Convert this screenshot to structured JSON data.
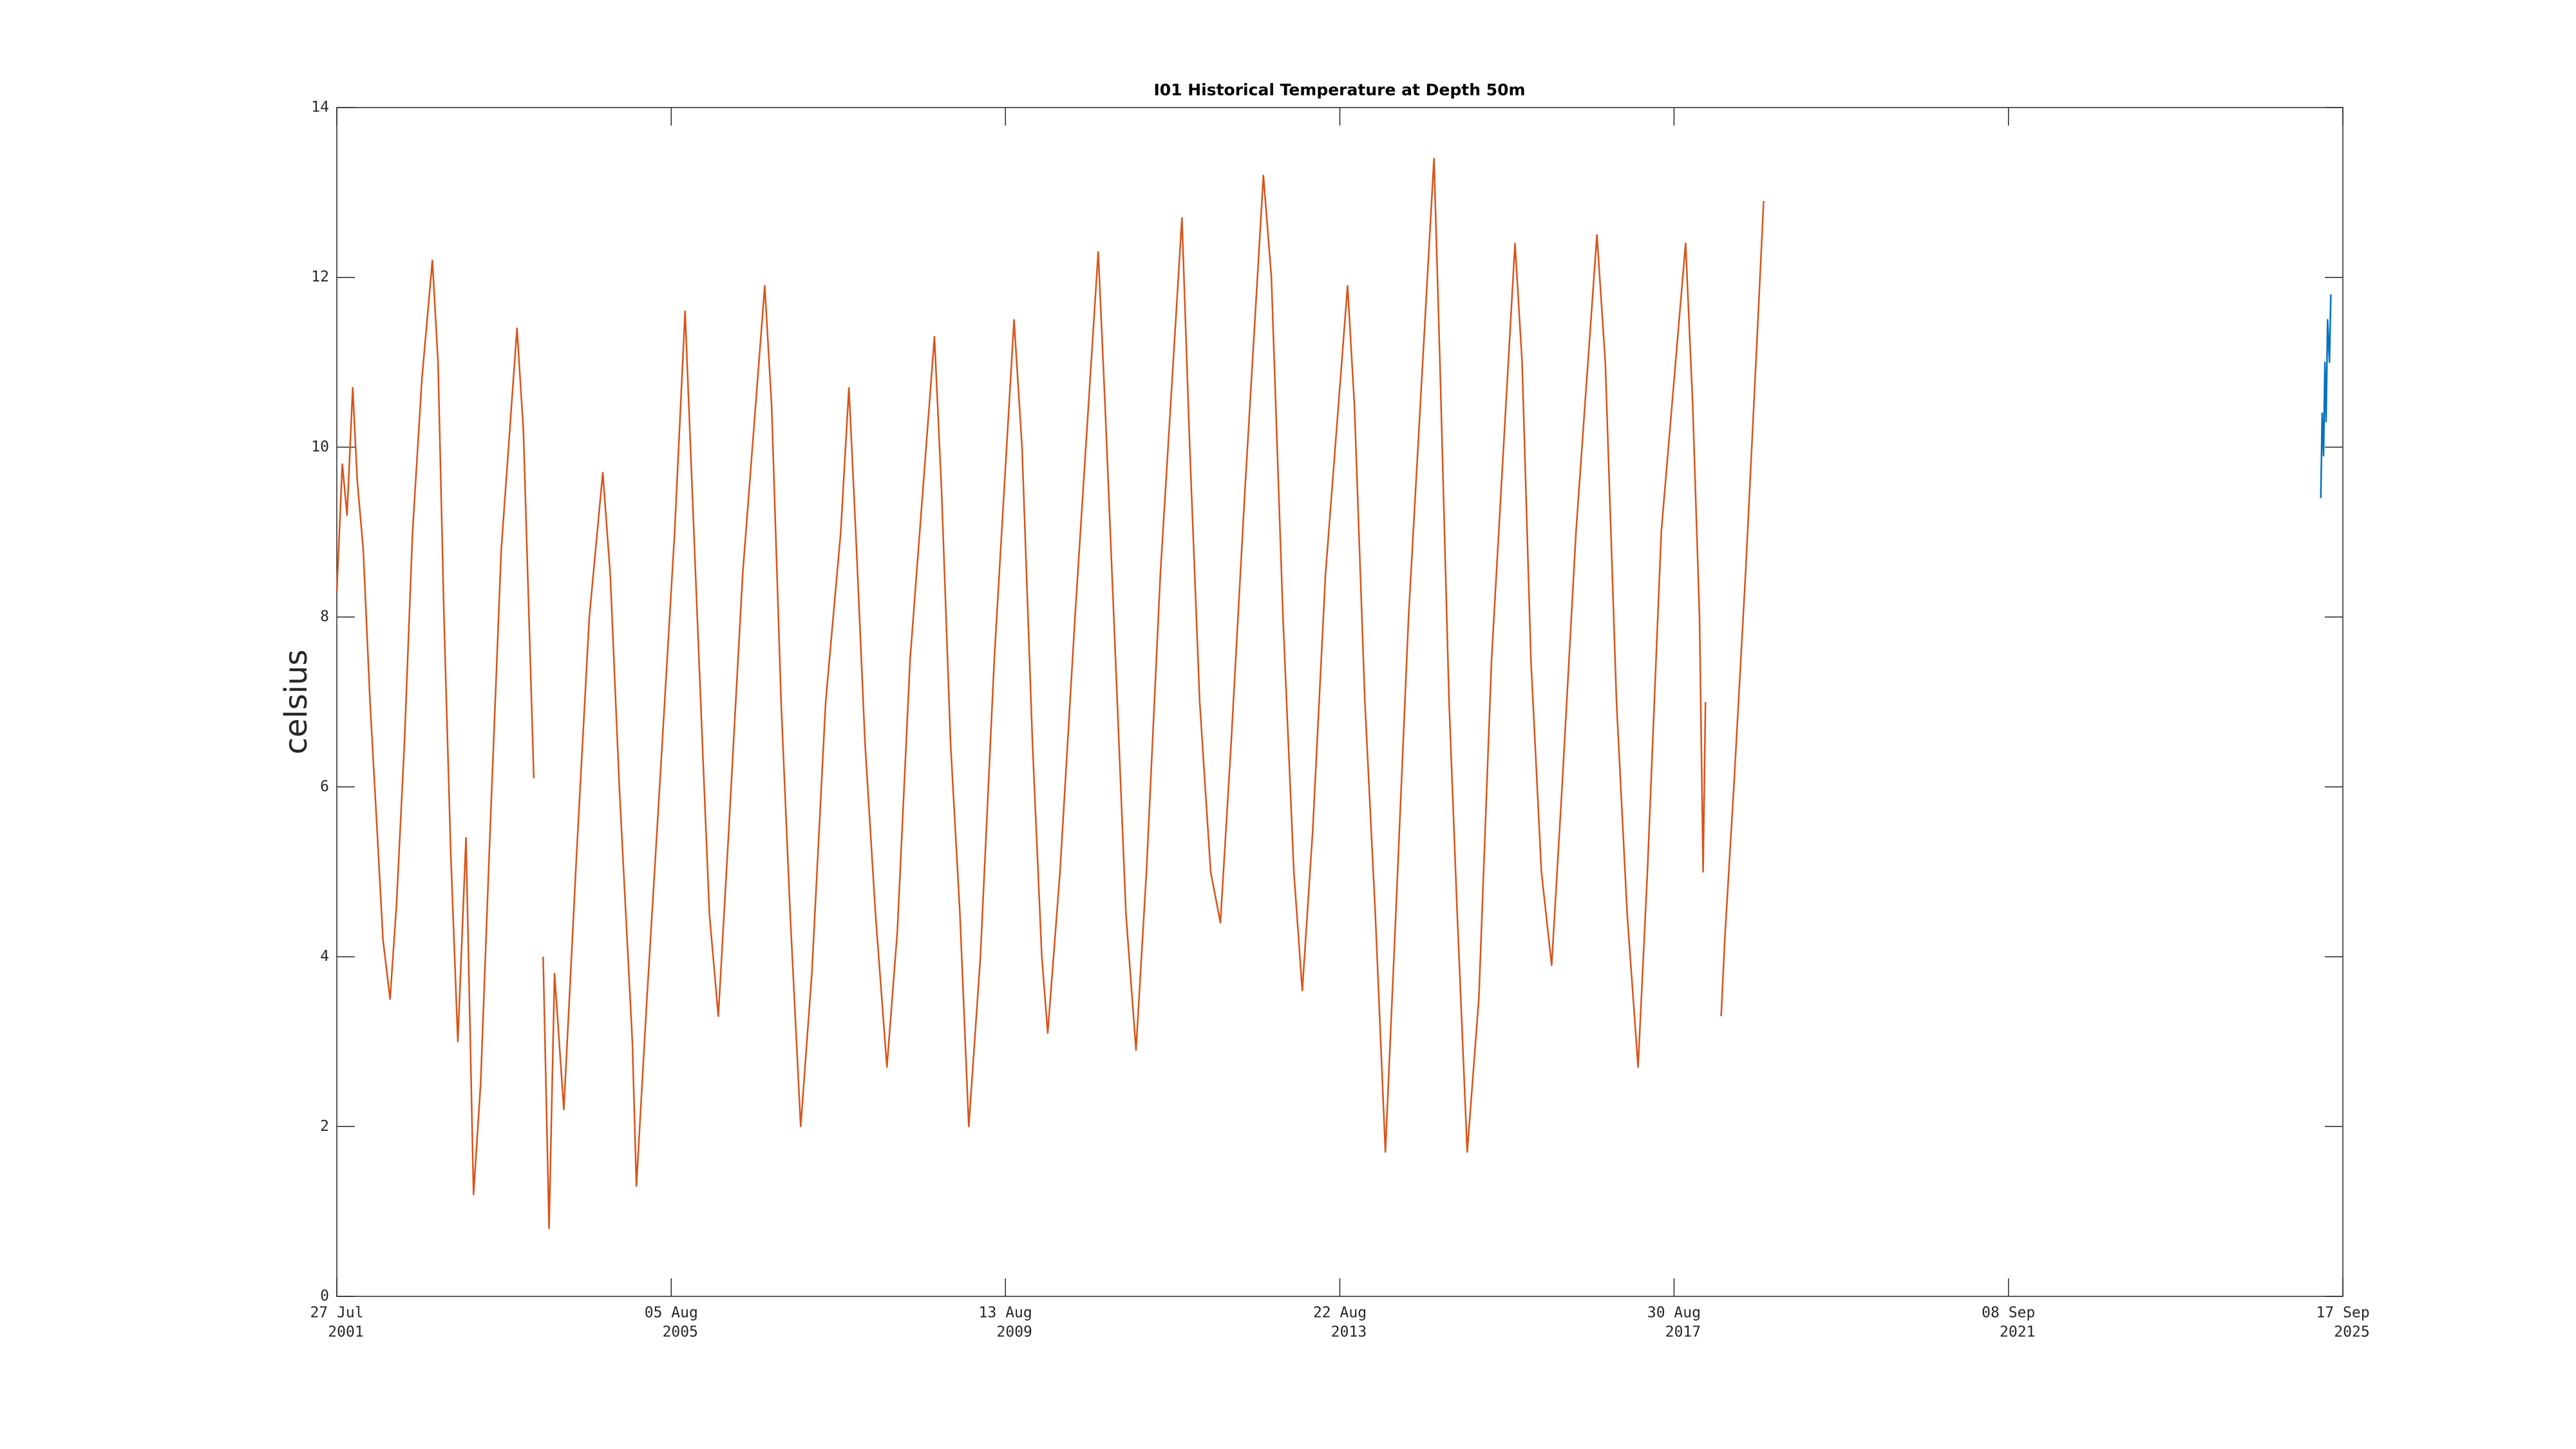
{
  "chart_data": {
    "type": "line",
    "title": "I01 Historical Temperature at Depth 50m",
    "y_label": "celsius",
    "xlim": [
      "2001-07-27",
      "2025-09-17"
    ],
    "xticks": [
      {
        "value": "2001-07-27",
        "label": [
          "27 Jul",
          "2001"
        ]
      },
      {
        "value": "2005-08-05",
        "label": [
          "05 Aug",
          "2005"
        ]
      },
      {
        "value": "2009-08-13",
        "label": [
          "13 Aug",
          "2009"
        ]
      },
      {
        "value": "2013-08-22",
        "label": [
          "22 Aug",
          "2013"
        ]
      },
      {
        "value": "2017-08-30",
        "label": [
          "30 Aug",
          "2017"
        ]
      },
      {
        "value": "2021-09-08",
        "label": [
          "08 Sep",
          "2021"
        ]
      },
      {
        "value": "2025-09-17",
        "label": [
          "17 Sep",
          "2025"
        ]
      }
    ],
    "ylim": [
      0,
      14
    ],
    "yticks": [
      0,
      2,
      4,
      6,
      8,
      10,
      12,
      14
    ],
    "series": [
      {
        "color": "#d95319",
        "x": [
          "2001-07-27",
          "2001-08-20",
          "2001-09-10",
          "2001-10-05",
          "2001-10-25",
          "2001-11-20",
          "2001-12-20",
          "2002-01-20",
          "2002-02-15",
          "2002-03-18",
          "2002-04-15",
          "2002-05-20",
          "2002-06-25",
          "2002-08-05",
          "2002-09-20",
          "2002-10-15",
          "2002-11-10",
          "2002-12-10",
          "2003-01-10",
          "2003-02-15",
          "2003-03-20",
          "2003-04-20",
          "2003-06-01",
          "2003-07-20",
          "2003-09-27",
          "2003-10-25",
          "2003-12-10",
          null,
          "2004-01-20",
          "2004-02-15",
          "2004-03-10",
          "2004-04-20",
          "2004-06-15",
          "2004-08-10",
          "2004-10-08",
          "2004-11-10",
          "2004-12-20",
          "2005-02-15",
          "2005-03-05",
          "2005-04-20",
          "2005-06-15",
          "2005-08-20",
          "2005-10-05",
          "2005-11-05",
          "2005-12-20",
          "2006-01-20",
          "2006-02-28",
          "2006-04-15",
          "2006-06-15",
          "2006-09-20",
          "2006-10-20",
          "2006-12-01",
          "2007-01-10",
          "2007-02-25",
          "2007-04-15",
          "2007-06-15",
          "2007-08-20",
          "2007-09-25",
          "2007-10-25",
          "2007-12-05",
          "2008-01-20",
          "2008-03-10",
          "2008-04-25",
          "2008-06-20",
          "2008-10-05",
          "2008-11-05",
          "2008-12-15",
          "2009-01-25",
          "2009-03-05",
          "2009-04-25",
          "2009-06-25",
          "2009-09-20",
          "2009-10-25",
          "2009-12-10",
          "2010-01-20",
          "2010-02-15",
          "2010-04-10",
          "2010-06-15",
          "2010-09-25",
          "2010-10-25",
          "2010-12-10",
          "2011-01-25",
          "2011-03-10",
          "2011-04-25",
          "2011-06-25",
          "2011-09-28",
          "2011-11-01",
          "2011-12-15",
          "2012-02-01",
          "2012-03-15",
          "2012-05-01",
          "2012-07-01",
          "2012-09-20",
          "2012-10-25",
          "2012-12-15",
          "2013-02-01",
          "2013-03-10",
          "2013-04-25",
          "2013-06-20",
          "2013-09-25",
          "2013-10-25",
          "2013-12-10",
          "2014-01-25",
          "2014-03-10",
          "2014-04-25",
          "2014-06-20",
          "2014-10-10",
          "2014-11-05",
          "2014-12-15",
          "2015-01-20",
          "2015-03-05",
          "2015-04-25",
          "2015-06-20",
          "2015-10-01",
          "2015-11-01",
          "2015-12-10",
          "2016-01-25",
          "2016-03-10",
          "2016-04-25",
          "2016-06-25",
          "2016-09-25",
          "2016-11-01",
          "2016-12-20",
          "2017-02-05",
          "2017-03-25",
          "2017-05-05",
          "2017-07-05",
          "2017-10-20",
          "2017-11-20",
          "2017-12-20",
          "2018-01-05",
          "2018-01-15",
          null,
          "2018-03-25",
          "2018-04-10",
          "2018-05-20",
          "2018-07-10",
          "2018-08-25",
          "2018-09-28"
        ],
        "values": [
          8.3,
          9.8,
          9.2,
          10.7,
          9.6,
          8.8,
          7.0,
          5.5,
          4.2,
          3.5,
          4.6,
          6.5,
          9.0,
          10.8,
          12.2,
          11.0,
          8.0,
          5.2,
          3.0,
          5.4,
          1.2,
          2.5,
          5.5,
          8.8,
          11.4,
          10.2,
          6.1,
          null,
          4.0,
          0.8,
          3.8,
          2.2,
          5.2,
          8.0,
          9.7,
          8.5,
          6.0,
          3.0,
          1.3,
          3.5,
          6.0,
          9.0,
          11.6,
          9.5,
          6.5,
          4.5,
          3.3,
          5.5,
          8.5,
          11.9,
          10.5,
          7.0,
          4.5,
          2.0,
          3.8,
          7.0,
          9.0,
          10.7,
          9.0,
          6.5,
          4.5,
          2.7,
          4.3,
          7.5,
          11.3,
          9.5,
          6.5,
          4.5,
          2.0,
          4.0,
          7.5,
          11.5,
          10.0,
          6.5,
          4.0,
          3.1,
          5.0,
          8.0,
          12.3,
          10.5,
          7.5,
          4.5,
          2.9,
          5.0,
          8.5,
          12.7,
          10.0,
          7.0,
          5.0,
          4.4,
          6.5,
          9.5,
          13.2,
          12.0,
          8.0,
          5.0,
          3.6,
          5.5,
          8.5,
          11.9,
          10.5,
          7.0,
          4.5,
          1.7,
          4.5,
          8.0,
          13.4,
          11.0,
          7.0,
          4.5,
          1.7,
          3.5,
          7.5,
          12.4,
          11.0,
          7.5,
          5.0,
          3.9,
          6.0,
          9.0,
          12.5,
          11.0,
          7.0,
          4.5,
          2.7,
          5.0,
          9.0,
          12.4,
          10.5,
          8.0,
          5.0,
          7.0,
          null,
          3.3,
          4.2,
          6.0,
          8.5,
          11.0,
          12.9
        ]
      },
      {
        "color": "#0072bd",
        "x": [
          "2025-06-12",
          "2025-06-18",
          "2025-06-24",
          "2025-06-30",
          "2025-07-05",
          "2025-07-12",
          "2025-07-20",
          "2025-07-26"
        ],
        "values": [
          9.4,
          10.4,
          9.9,
          11.0,
          10.3,
          11.5,
          11.0,
          11.8
        ]
      }
    ]
  }
}
